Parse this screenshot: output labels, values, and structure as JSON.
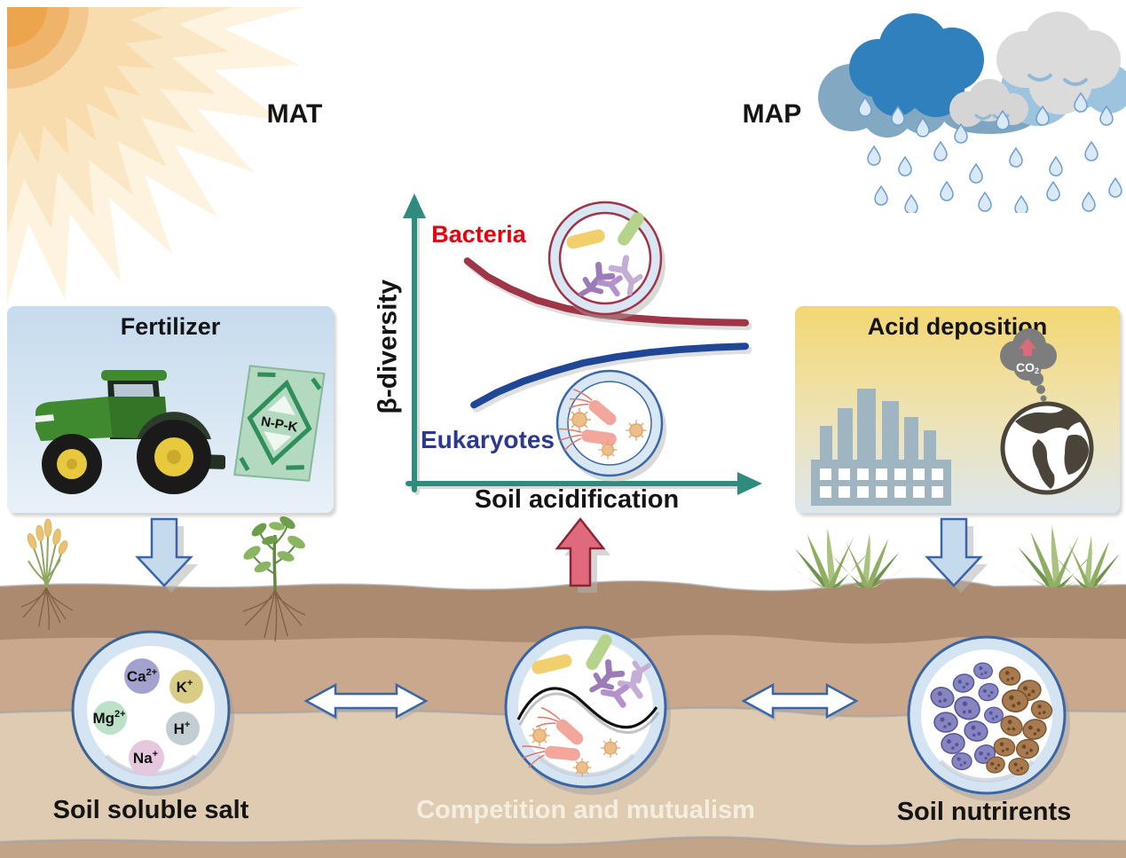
{
  "colors": {
    "axis": "#2e8b7e",
    "soil_layer1": "#ac8a6f",
    "soil_layer2": "#c9a88d",
    "soil_layer3": "#decbb2",
    "soil_layer4": "#c2a488",
    "arrow_blue_fill": "#c6daee",
    "arrow_blue_stroke": "#3a66a8",
    "arrow_red_fill": "#e06a7d",
    "arrow_red_stroke": "#8b2433",
    "center_label": "#f5eede"
  },
  "climate": {
    "mat_label": "MAT",
    "map_label": "MAP"
  },
  "fertilizer_box": {
    "title": "Fertilizer",
    "bag_label": "N-P-K"
  },
  "acid_box": {
    "title": "Acid deposition",
    "co2": {
      "base": "CO",
      "sub": "2"
    }
  },
  "chart_data": {
    "type": "line",
    "title": "",
    "xlabel": "Soil acidification",
    "ylabel": "β-diversity",
    "xlim": [
      0,
      10
    ],
    "ylim": [
      0,
      10
    ],
    "grid": false,
    "legend_position": "inline",
    "axis_color": "#2e8b7e",
    "series": [
      {
        "name": "Bacteria",
        "label_color": "#e8000d",
        "color": "#9e3648",
        "x": [
          1.6,
          2.2,
          2.9,
          3.7,
          4.6,
          5.5,
          6.5,
          7.5,
          8.5,
          9.4,
          10
        ],
        "values": [
          7.9,
          7.35,
          6.9,
          6.5,
          6.2,
          6.0,
          5.87,
          5.78,
          5.73,
          5.7,
          5.69
        ]
      },
      {
        "name": "Eukaryotes",
        "label_color": "#2b3990",
        "color": "#1f4796",
        "x": [
          1.8,
          2.5,
          3.3,
          4.2,
          5.1,
          6.1,
          7.1,
          8.1,
          9.1,
          10
        ],
        "values": [
          2.75,
          3.2,
          3.6,
          3.95,
          4.25,
          4.47,
          4.63,
          4.74,
          4.81,
          4.85
        ]
      }
    ]
  },
  "soil": {
    "salt_dish": {
      "label": "Soil soluble salt",
      "ions": [
        {
          "base": "Ca",
          "sup": "2+",
          "color": "#a3a2ce"
        },
        {
          "base": "K",
          "sup": "+",
          "color": "#d9cd85"
        },
        {
          "base": "Mg",
          "sup": "2+",
          "color": "#bce0c8"
        },
        {
          "base": "H",
          "sup": "+",
          "color": "#c3ced2"
        },
        {
          "base": "Na",
          "sup": "+",
          "color": "#e6c8de"
        }
      ]
    },
    "center_dish": {
      "label": "Competition and mutualism"
    },
    "nutrient_dish": {
      "label": "Soil nutrirents"
    }
  }
}
